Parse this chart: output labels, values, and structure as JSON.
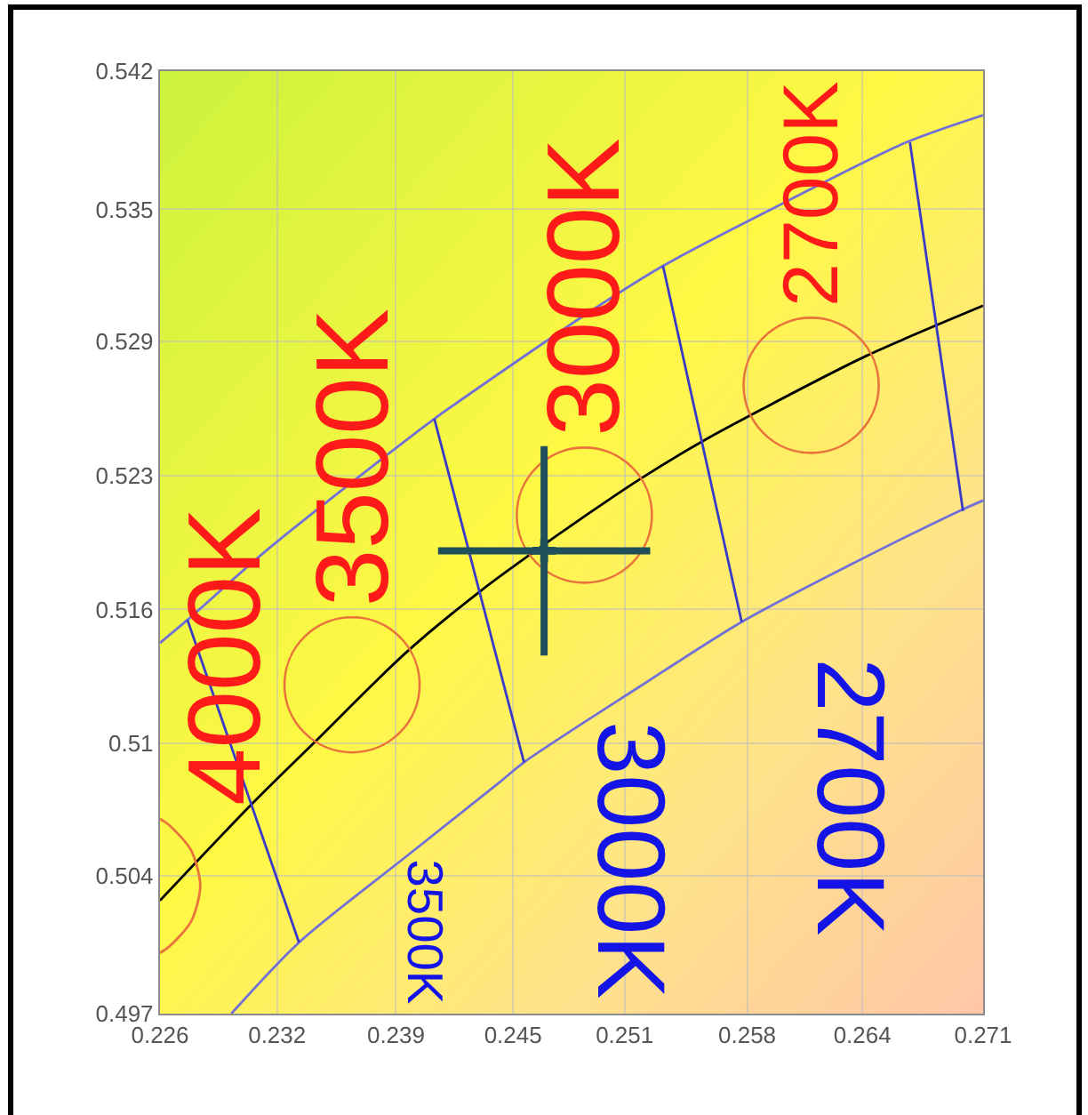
{
  "chart_data": {
    "type": "line",
    "xlim": [
      0.226,
      0.271
    ],
    "xticks": [
      0.226,
      {
        "value": 0.2324,
        "label": "0.232"
      },
      {
        "value": 0.2389,
        "label": "0.239"
      },
      {
        "value": 0.2453,
        "label": "0.245"
      },
      {
        "value": 0.2514,
        "label": "0.251"
      },
      {
        "value": 0.2581,
        "label": "0.258"
      },
      {
        "value": 0.2644,
        "label": "0.264"
      },
      0.271
    ],
    "ylim": [
      0.497,
      0.542
    ],
    "yticks": [
      0.497,
      {
        "value": 0.5036,
        "label": "0.504"
      },
      {
        "value": 0.5099,
        "label": "0.51"
      },
      {
        "value": 0.5163,
        "label": "0.516"
      },
      {
        "value": 0.5227,
        "label": "0.523"
      },
      {
        "value": 0.5291,
        "label": "0.529"
      },
      {
        "value": 0.5354,
        "label": "0.535"
      },
      0.542
    ],
    "grid": true,
    "series": [
      {
        "color": "#000000",
        "x": [
          0.226,
          0.2309,
          0.2345,
          0.2394,
          0.2437,
          0.2462,
          0.2493,
          0.2522,
          0.2556,
          0.259,
          0.2646,
          0.271
        ],
        "values": [
          0.5024,
          0.5069,
          0.51,
          0.5142,
          0.5173,
          0.5189,
          0.5208,
          0.5225,
          0.5243,
          0.5259,
          0.5284,
          0.5308
        ]
      },
      {
        "color": "#7070d8",
        "x": [
          0.226,
          0.2275,
          0.2318,
          0.2383,
          0.241,
          0.2471,
          0.2493,
          0.2535,
          0.2603,
          0.2668,
          0.271
        ],
        "values": [
          0.5147,
          0.5158,
          0.5191,
          0.5236,
          0.5254,
          0.5291,
          0.5304,
          0.5327,
          0.5358,
          0.5386,
          0.5399
        ]
      },
      {
        "color": "#7070d8",
        "x": [
          0.2299,
          0.2336,
          0.2396,
          0.2445,
          0.2459,
          0.2522,
          0.2578,
          0.2639,
          0.2697,
          0.271
        ],
        "values": [
          0.497,
          0.5004,
          0.5046,
          0.508,
          0.509,
          0.5126,
          0.5157,
          0.5185,
          0.521,
          0.5215
        ]
      },
      {
        "color": "#3a3ac8",
        "x": [
          0.2275,
          0.2336
        ],
        "values": [
          0.5158,
          0.5004
        ]
      },
      {
        "color": "#3a3ac8",
        "x": [
          0.241,
          0.2459
        ],
        "values": [
          0.5254,
          0.509
        ]
      },
      {
        "color": "#3a3ac8",
        "x": [
          0.2535,
          0.2578
        ],
        "values": [
          0.5327,
          0.5157
        ]
      },
      {
        "color": "#3a3ac8",
        "x": [
          0.267,
          0.2699
        ],
        "values": [
          0.5386,
          0.521
        ]
      },
      {
        "color": "#e8743c",
        "x": [
          0.226,
          0.2265,
          0.2277,
          0.2282,
          0.2277,
          0.2265,
          0.226
        ],
        "values": [
          0.5063,
          0.506,
          0.5048,
          0.5031,
          0.5014,
          0.5002,
          0.4999
        ]
      },
      {
        "type": "scatter",
        "marker": "circle",
        "color": "#e8743c",
        "x": [
          0.2365,
          0.2492,
          0.2616
        ],
        "values": [
          0.5127,
          0.5208,
          0.527
        ]
      },
      {
        "type": "scatter",
        "marker": "cross",
        "color": "#1e4f5a",
        "x": [
          0.247
        ],
        "values": [
          0.5191
        ],
        "errors": [
          0.005
        ],
        "xerrors": [
          0.0058
        ]
      }
    ],
    "annotations": [
      {
        "text": "4000K",
        "x": 0.226,
        "y": 0.5063
      },
      {
        "text": "3500K",
        "x": 0.2365,
        "y": 0.5127
      },
      {
        "text": "3000K",
        "x": 0.2492,
        "y": 0.5208
      },
      {
        "text": "2700K",
        "x": 0.2616,
        "y": 0.527
      },
      {
        "text": "3500K",
        "x": 0.2405,
        "y": 0.5052
      },
      {
        "text": "3000K",
        "x": 0.2517,
        "y": 0.5123
      },
      {
        "text": "2700K",
        "x": 0.2637,
        "y": 0.5184
      }
    ]
  }
}
